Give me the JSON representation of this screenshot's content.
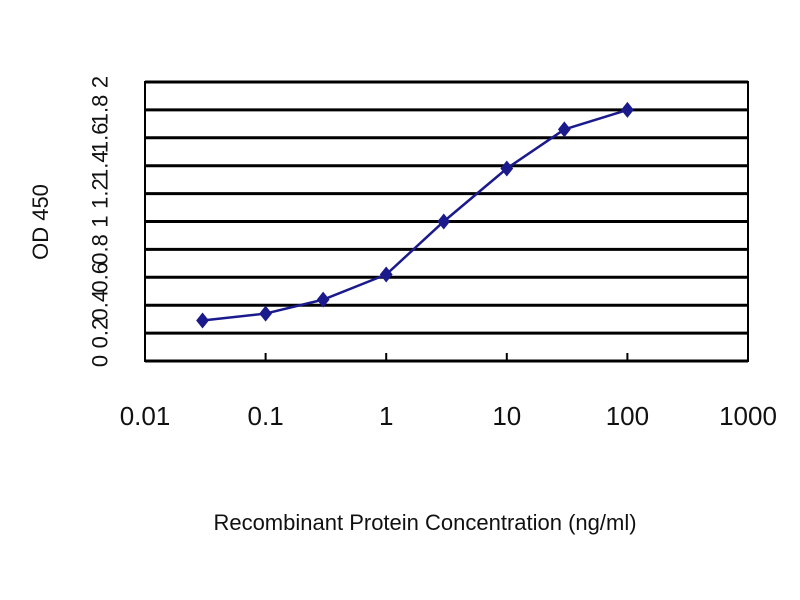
{
  "chart_data": {
    "type": "line",
    "title": "",
    "xlabel": "Recombinant Protein Concentration (ng/ml)",
    "ylabel": "OD 450",
    "xscale": "log",
    "xlim": [
      0.01,
      1000
    ],
    "ylim": [
      0,
      2
    ],
    "xticks": [
      "0.01",
      "0.1",
      "1",
      "10",
      "100",
      "1000"
    ],
    "yticks": [
      "0",
      "0.2",
      "0.4",
      "0.6",
      "0.8",
      "1",
      "1.2",
      "1.4",
      "1.6",
      "1.8",
      "2"
    ],
    "grid": "horizontal",
    "legend": "none",
    "series": [
      {
        "color": "#1a1a8c",
        "marker": "diamond",
        "x": [
          0.03,
          0.1,
          0.3,
          1,
          3,
          10,
          30,
          100
        ],
        "y": [
          0.29,
          0.34,
          0.44,
          0.62,
          1.0,
          1.38,
          1.66,
          1.8
        ]
      }
    ]
  }
}
